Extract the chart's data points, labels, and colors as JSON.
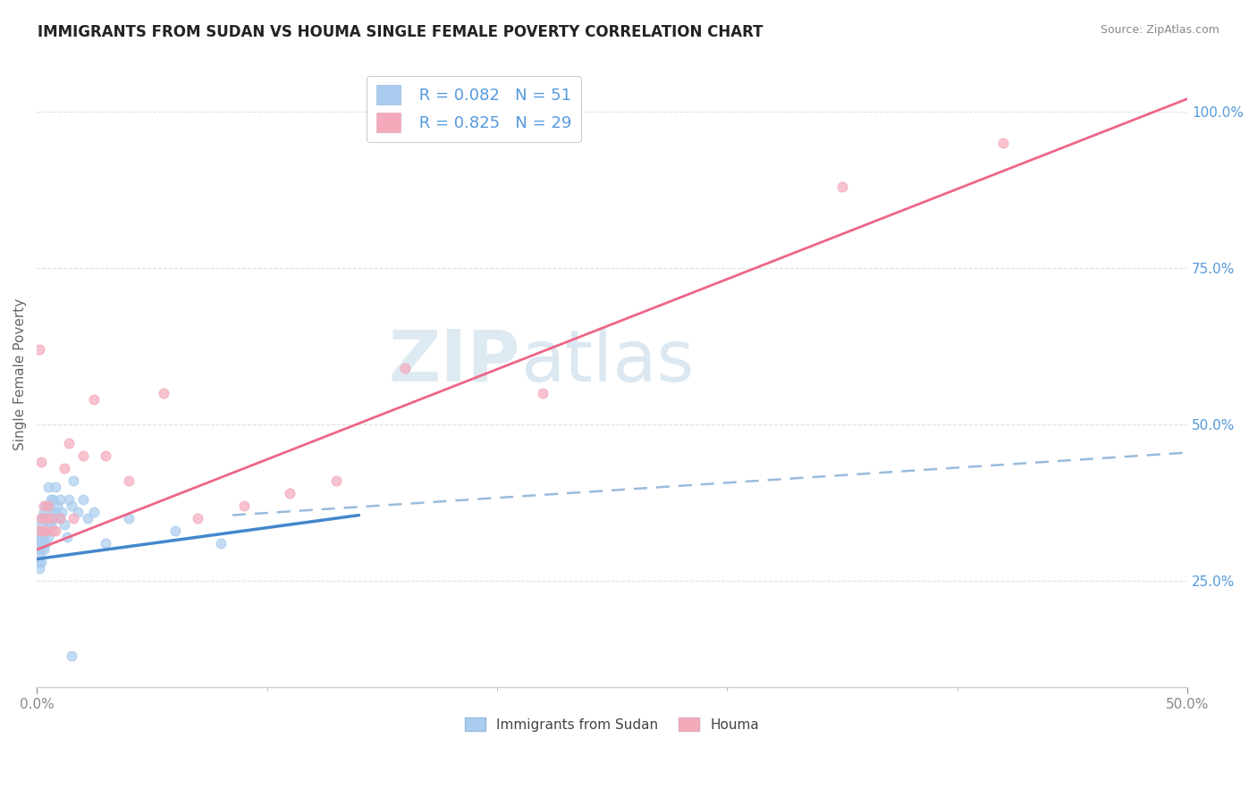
{
  "title": "IMMIGRANTS FROM SUDAN VS HOUMA SINGLE FEMALE POVERTY CORRELATION CHART",
  "source": "Source: ZipAtlas.com",
  "ylabel": "Single Female Poverty",
  "legend_label1": "Immigrants from Sudan",
  "legend_label2": "Houma",
  "r1": 0.082,
  "n1": 51,
  "r2": 0.825,
  "n2": 29,
  "xlim": [
    0,
    0.5
  ],
  "ylim": [
    0.08,
    1.08
  ],
  "watermark_zip": "ZIP",
  "watermark_atlas": "atlas",
  "blue_dot_color": "#aaccee",
  "pink_dot_color": "#f4aabb",
  "blue_line_color": "#4488cc",
  "pink_line_color": "#ee6688",
  "dashed_line_color": "#99bbdd",
  "grid_color": "#dddddd",
  "ytick_color": "#5599dd",
  "xtick_color": "#888888",
  "sudan_x": [
    0.001,
    0.001,
    0.001,
    0.001,
    0.001,
    0.001,
    0.001,
    0.002,
    0.002,
    0.002,
    0.002,
    0.002,
    0.002,
    0.003,
    0.003,
    0.003,
    0.003,
    0.003,
    0.004,
    0.004,
    0.004,
    0.004,
    0.005,
    0.005,
    0.005,
    0.005,
    0.006,
    0.006,
    0.006,
    0.007,
    0.007,
    0.008,
    0.008,
    0.009,
    0.01,
    0.01,
    0.011,
    0.012,
    0.013,
    0.014,
    0.015,
    0.016,
    0.018,
    0.02,
    0.022,
    0.025,
    0.03,
    0.04,
    0.06,
    0.08,
    0.015
  ],
  "sudan_y": [
    0.28,
    0.3,
    0.31,
    0.32,
    0.33,
    0.29,
    0.27,
    0.3,
    0.31,
    0.32,
    0.34,
    0.35,
    0.28,
    0.3,
    0.32,
    0.33,
    0.35,
    0.36,
    0.31,
    0.33,
    0.35,
    0.37,
    0.32,
    0.34,
    0.37,
    0.4,
    0.34,
    0.36,
    0.38,
    0.35,
    0.38,
    0.36,
    0.4,
    0.37,
    0.35,
    0.38,
    0.36,
    0.34,
    0.32,
    0.38,
    0.37,
    0.41,
    0.36,
    0.38,
    0.35,
    0.36,
    0.31,
    0.35,
    0.33,
    0.31,
    0.13
  ],
  "houma_x": [
    0.001,
    0.001,
    0.002,
    0.002,
    0.003,
    0.003,
    0.004,
    0.004,
    0.005,
    0.006,
    0.007,
    0.008,
    0.01,
    0.012,
    0.014,
    0.016,
    0.02,
    0.025,
    0.03,
    0.04,
    0.055,
    0.07,
    0.09,
    0.11,
    0.13,
    0.16,
    0.22,
    0.35,
    0.42
  ],
  "houma_y": [
    0.62,
    0.33,
    0.44,
    0.35,
    0.37,
    0.33,
    0.35,
    0.33,
    0.37,
    0.35,
    0.33,
    0.33,
    0.35,
    0.43,
    0.47,
    0.35,
    0.45,
    0.54,
    0.45,
    0.41,
    0.55,
    0.35,
    0.37,
    0.39,
    0.41,
    0.59,
    0.55,
    0.88,
    0.95
  ],
  "blue_line_x": [
    0.0,
    0.14
  ],
  "blue_line_y": [
    0.285,
    0.355
  ],
  "dashed_line_x": [
    0.085,
    0.5
  ],
  "dashed_line_y": [
    0.355,
    0.455
  ],
  "pink_line_x": [
    0.0,
    0.5
  ],
  "pink_line_y": [
    0.3,
    1.02
  ]
}
